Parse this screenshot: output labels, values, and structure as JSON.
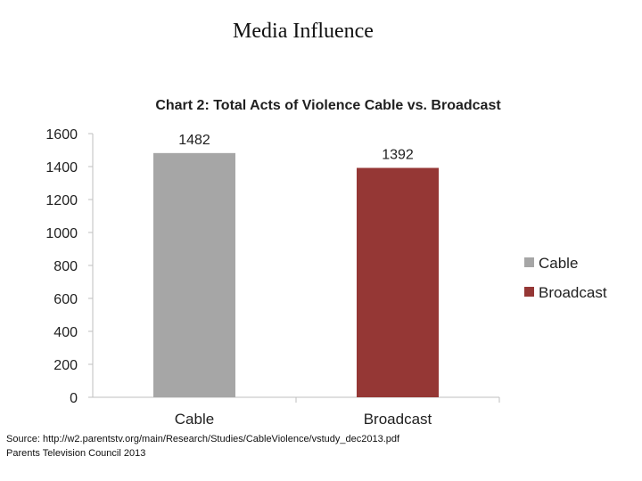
{
  "slide": {
    "title": "Media Influence",
    "source_line1": "Source:  http://w2.parentstv.org/main/Research/Studies/CableViolence/vstudy_dec2013.pdf",
    "source_line2": "Parents Television Council 2013"
  },
  "chart_data": {
    "type": "bar",
    "title": "Chart 2: Total Acts of Violence Cable vs. Broadcast",
    "categories": [
      "Cable",
      "Broadcast"
    ],
    "values": [
      1482,
      1392
    ],
    "data_labels": [
      "1482",
      "1392"
    ],
    "colors": [
      "#a6a6a6",
      "#953735"
    ],
    "ylim": [
      0,
      1600
    ],
    "yticks": [
      0,
      200,
      400,
      600,
      800,
      1000,
      1200,
      1400,
      1600
    ],
    "xlabel": "",
    "ylabel": "",
    "grid": false,
    "legend": {
      "placement": "right",
      "entries": [
        {
          "label": "Cable",
          "color": "#a6a6a6"
        },
        {
          "label": "Broadcast",
          "color": "#953735"
        }
      ]
    }
  }
}
